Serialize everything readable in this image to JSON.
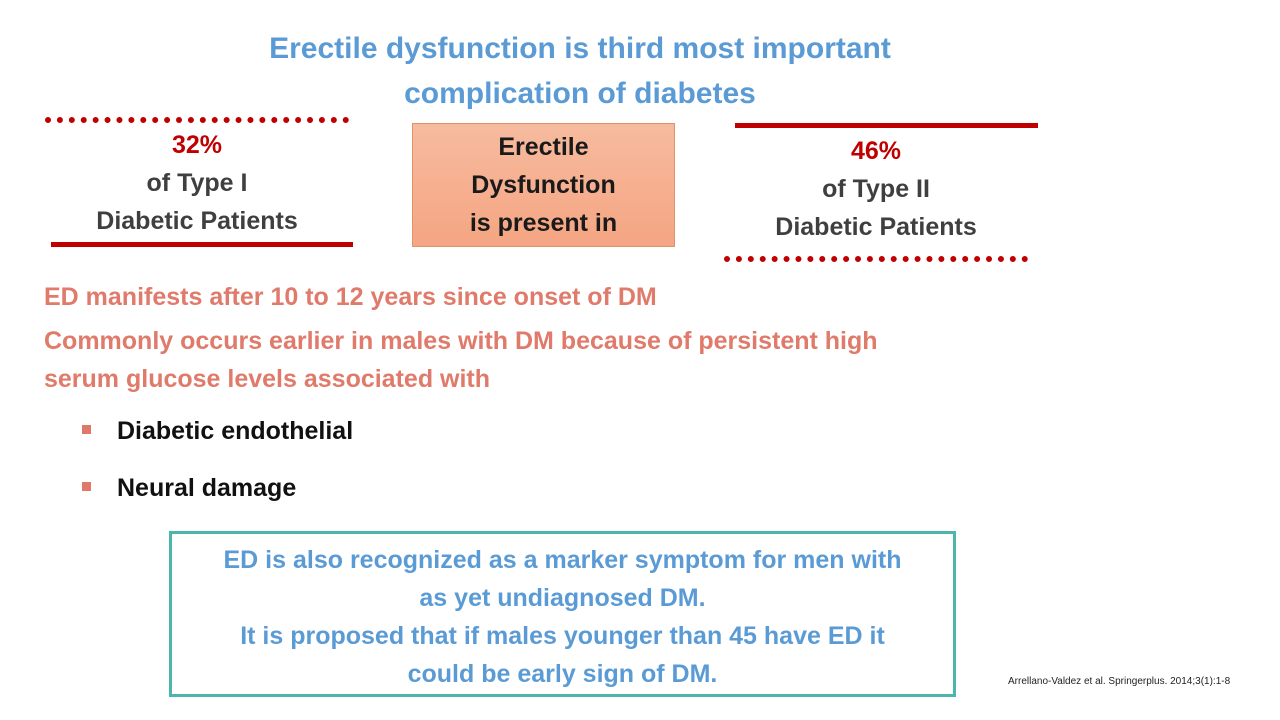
{
  "title": {
    "line1": "Erectile dysfunction is third most important",
    "line2": "complication of diabetes"
  },
  "left_stat": {
    "percent": "32%",
    "line1": "of Type I",
    "line2": "Diabetic Patients"
  },
  "center_box": {
    "line1": "Erectile",
    "line2": "Dysfunction",
    "line3": "is present in"
  },
  "right_stat": {
    "percent": "46%",
    "line1": "of Type II",
    "line2": "Diabetic Patients"
  },
  "paragraphs": {
    "p1": "ED manifests after 10 to 12 years since onset of DM",
    "p2_line1": "Commonly occurs earlier in males with DM because of persistent high",
    "p2_line2": "serum glucose levels associated with"
  },
  "bullets": [
    {
      "text": "Diabetic endothelial"
    },
    {
      "text": "Neural damage"
    }
  ],
  "note": {
    "line1": "ED is also recognized as a marker symptom for men with",
    "line2": "as yet undiagnosed DM.",
    "line3": "It is proposed that if males younger than 45 have ED it",
    "line4": "could be early sign of  DM."
  },
  "citation": "Arrellano-Valdez et al. Springerplus. 2014;3(1):1-8",
  "colors": {
    "title": "#5b9bd5",
    "accent_red": "#c00000",
    "paragraph": "#e07a6a",
    "box_fill": "#f5a582",
    "note_border": "#4db6ac"
  }
}
